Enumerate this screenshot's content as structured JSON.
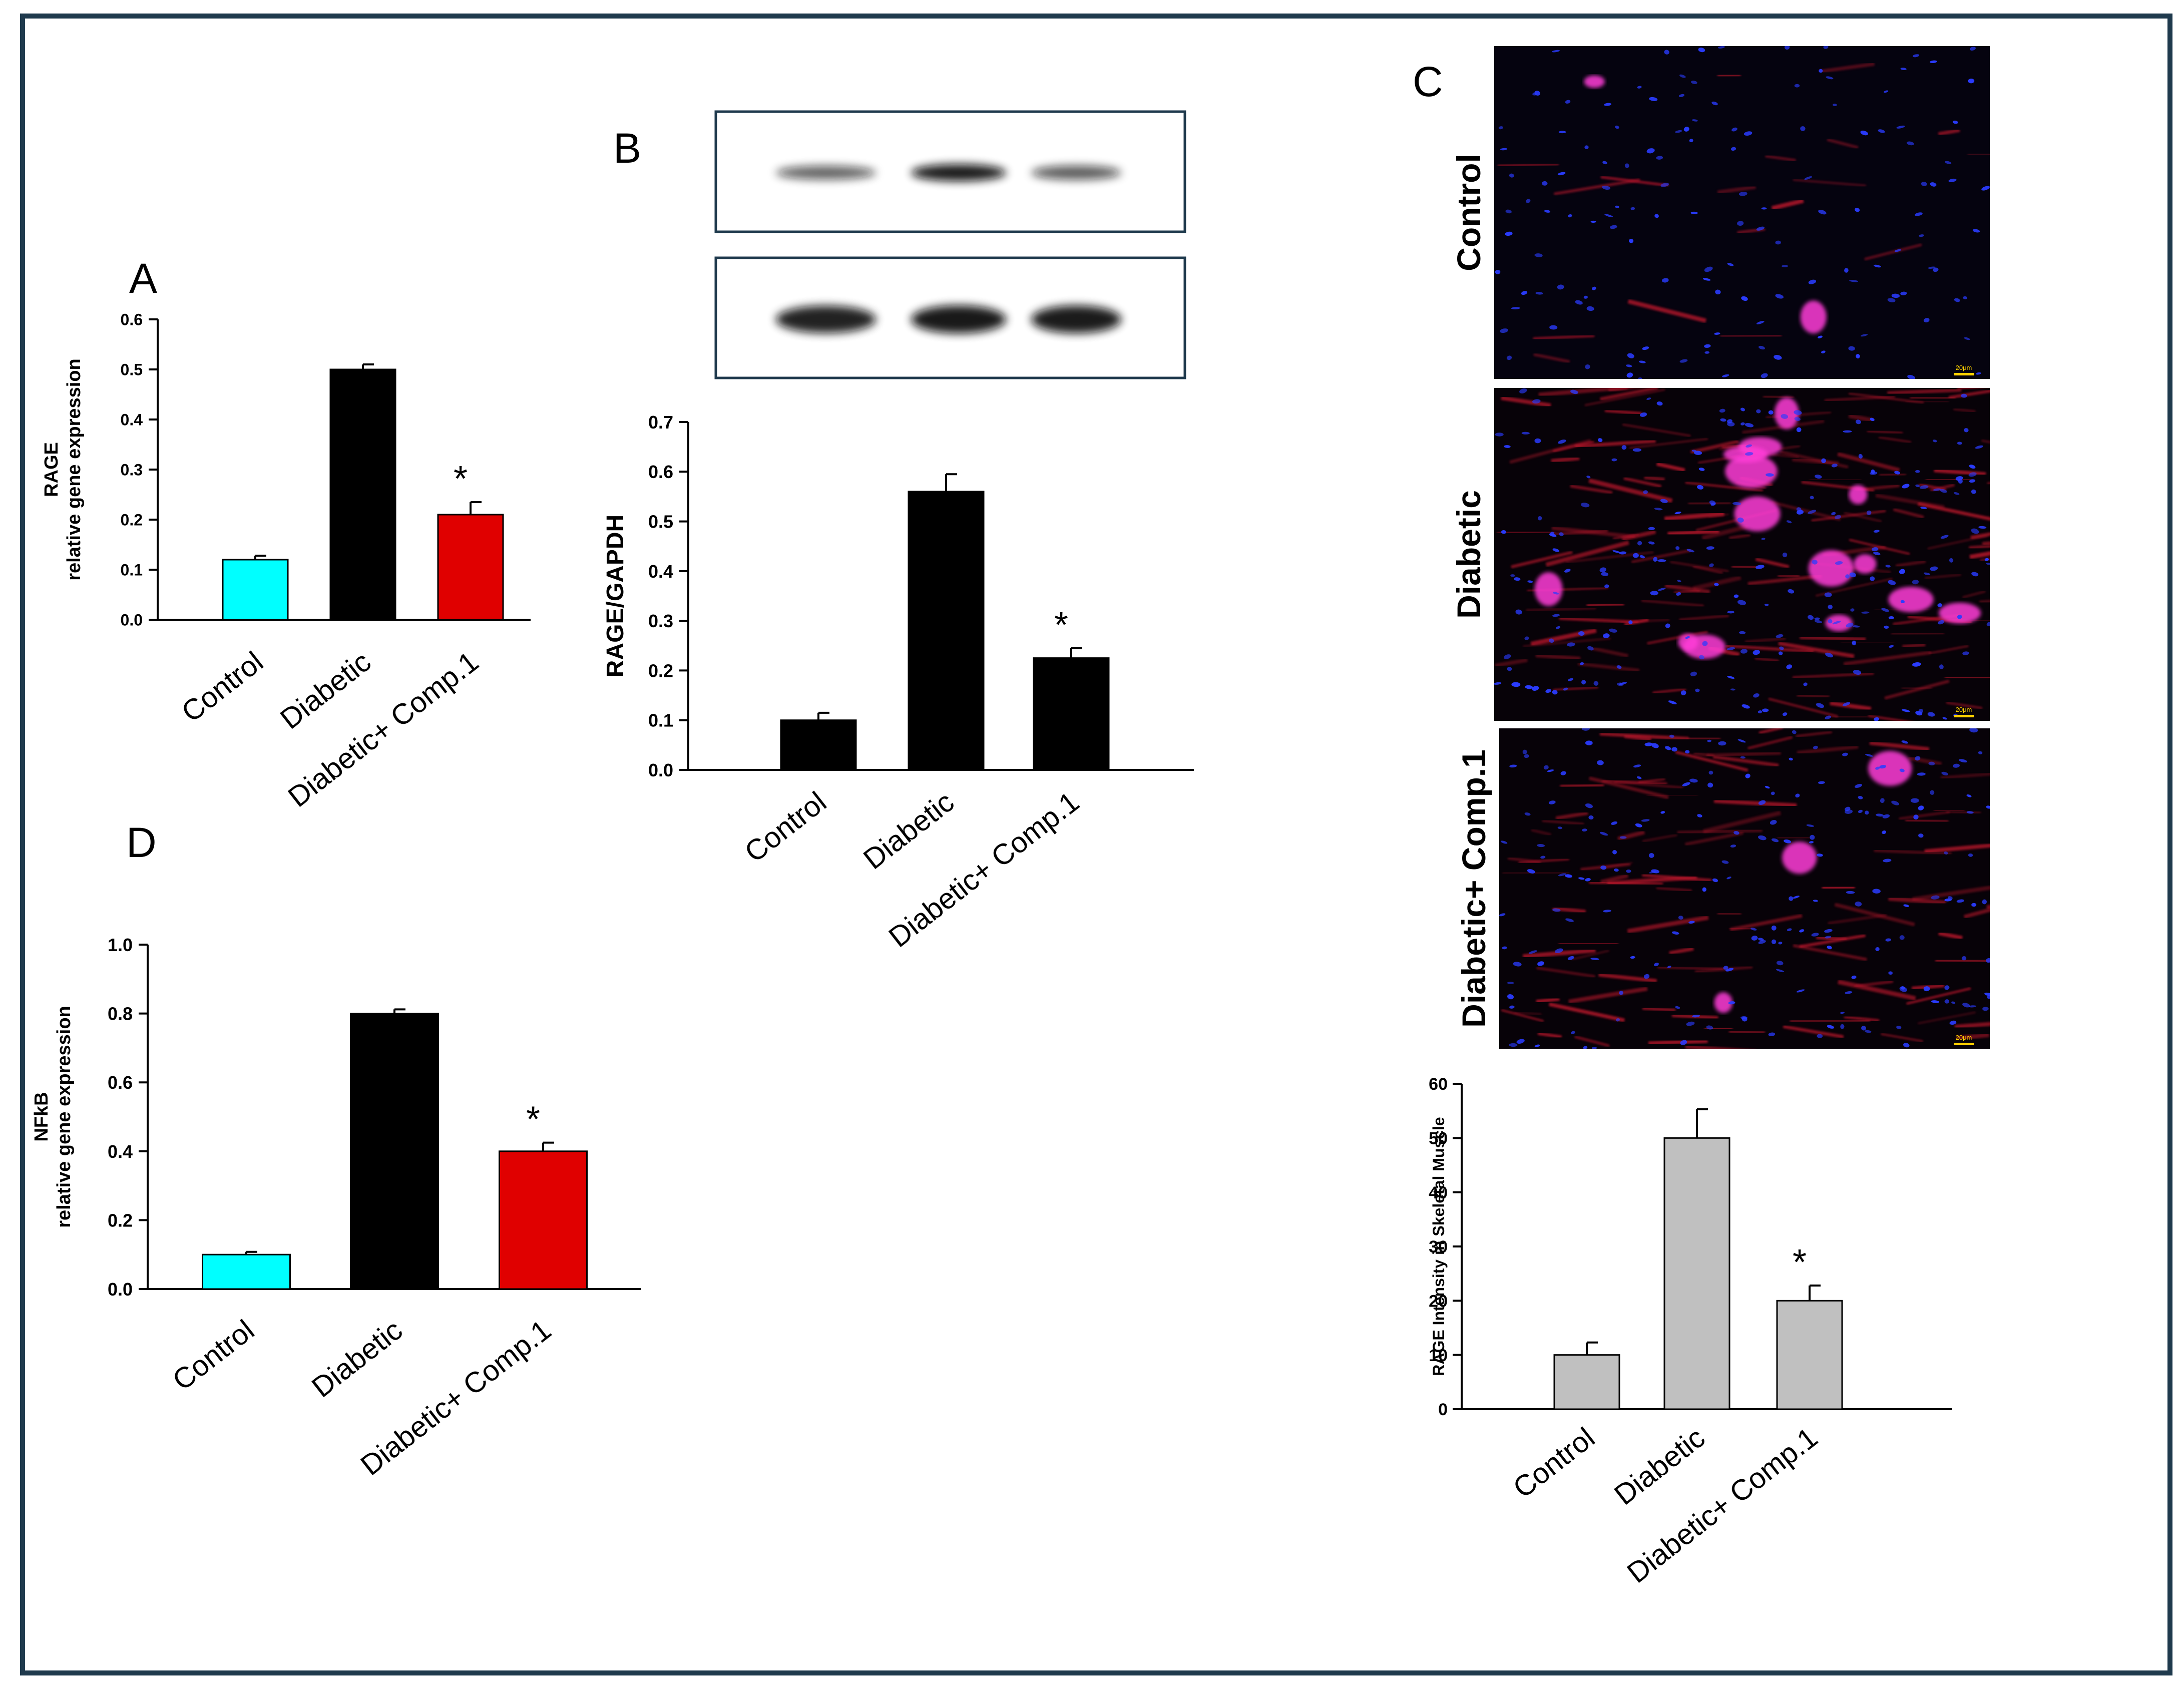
{
  "colors": {
    "border": "#1f3a4d",
    "cyan": "#00ffff",
    "black": "#000000",
    "red": "#e00000",
    "gray": "#c0c0c0",
    "blue_nuclei": "#2a3cff",
    "red_stain": "#d01c2c",
    "magenta_stain": "#ff3cd8"
  },
  "panels": {
    "A": "A",
    "B": "B",
    "C": "C",
    "D": "D"
  },
  "images": {
    "rows": [
      {
        "label": "Control",
        "scale": "20μm"
      },
      {
        "label": "Diabetic",
        "scale": "20μm"
      },
      {
        "label": "Diabetic+ Comp.1",
        "scale": "20μm"
      }
    ]
  },
  "chart_data": [
    {
      "id": "A",
      "type": "bar",
      "ylabel": [
        "RAGE",
        "relative gene expression"
      ],
      "categories": [
        "Control",
        "Diabetic",
        "Diabetic+ Comp.1"
      ],
      "values": [
        0.12,
        0.5,
        0.21
      ],
      "errors": [
        0.008,
        0.01,
        0.025
      ],
      "colors": [
        "#00ffff",
        "#000000",
        "#e00000"
      ],
      "ylim": [
        0,
        0.6
      ],
      "yticks": [
        "0.0",
        "0.1",
        "0.2",
        "0.3",
        "0.4",
        "0.5",
        "0.6"
      ],
      "annotations": [
        "",
        "",
        "*"
      ]
    },
    {
      "id": "B",
      "type": "bar",
      "ylabel": [
        "RAGE/GAPDH"
      ],
      "categories": [
        "Control",
        "Diabetic",
        "Diabetic+ Comp.1"
      ],
      "values": [
        0.1,
        0.56,
        0.225
      ],
      "errors": [
        0.015,
        0.035,
        0.02
      ],
      "colors": [
        "#000000",
        "#000000",
        "#000000"
      ],
      "ylim": [
        0,
        0.7
      ],
      "yticks": [
        "0.0",
        "0.1",
        "0.2",
        "0.3",
        "0.4",
        "0.5",
        "0.6",
        "0.7"
      ],
      "annotations": [
        "",
        "",
        "*"
      ],
      "blots": [
        {
          "intensity": [
            0.55,
            1.0,
            0.6
          ]
        },
        {
          "intensity": [
            0.95,
            1.0,
            0.98
          ]
        }
      ]
    },
    {
      "id": "C",
      "type": "bar",
      "ylabel": [
        "RAGE Intensity in Skeletal Muscle"
      ],
      "categories": [
        "Control",
        "Diabetic",
        "Diabetic+ Comp.1"
      ],
      "values": [
        10,
        50,
        20
      ],
      "errors": [
        2.3,
        5.3,
        2.8
      ],
      "colors": [
        "#c0c0c0",
        "#c0c0c0",
        "#c0c0c0"
      ],
      "ylim": [
        0,
        60
      ],
      "yticks": [
        "0",
        "10",
        "20",
        "30",
        "40",
        "50",
        "60"
      ],
      "annotations": [
        "",
        "",
        "*"
      ]
    },
    {
      "id": "D",
      "type": "bar",
      "ylabel": [
        "NFkB",
        "relative gene expression"
      ],
      "categories": [
        "Control",
        "Diabetic",
        "Diabetic+ Comp.1"
      ],
      "values": [
        0.1,
        0.8,
        0.4
      ],
      "errors": [
        0.008,
        0.012,
        0.025
      ],
      "colors": [
        "#00ffff",
        "#000000",
        "#e00000"
      ],
      "ylim": [
        0,
        1.0
      ],
      "yticks": [
        "0.0",
        "0.2",
        "0.4",
        "0.6",
        "0.8",
        "1.0"
      ],
      "annotations": [
        "",
        "",
        "*"
      ]
    }
  ]
}
